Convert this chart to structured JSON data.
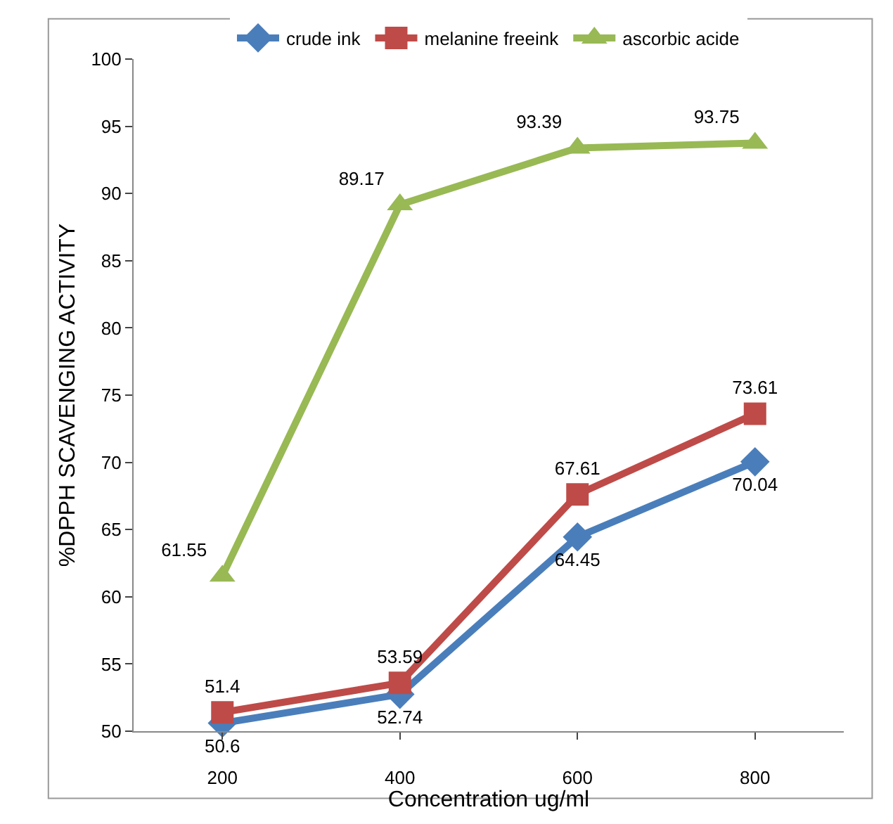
{
  "chart_data": {
    "type": "line",
    "xlabel": "Concentration ug/ml",
    "ylabel": "%DPPH SCAVENGING ACTIVITY",
    "categories": [
      "200",
      "400",
      "600",
      "800"
    ],
    "series": [
      {
        "name": "crude ink",
        "color": "#4a7ebb",
        "marker": "diamond",
        "values": [
          50.6,
          52.74,
          64.45,
          70.04
        ]
      },
      {
        "name": "melanine freeink",
        "color": "#be4b48",
        "marker": "square",
        "values": [
          51.4,
          53.59,
          67.61,
          73.61
        ]
      },
      {
        "name": "ascorbic acide",
        "color": "#98b954",
        "marker": "triangle",
        "values": [
          61.55,
          89.17,
          93.39,
          93.75
        ]
      }
    ],
    "ylim": [
      50,
      100
    ],
    "yticks": [
      50,
      55,
      60,
      65,
      70,
      75,
      80,
      85,
      90,
      95,
      100
    ],
    "grid": false,
    "legend": "top",
    "data_labels": true,
    "line_style": "solid"
  }
}
